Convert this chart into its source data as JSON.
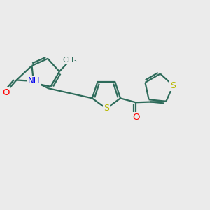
{
  "bg_color": "#ebebeb",
  "bond_color": "#2d6b5a",
  "bond_width": 1.6,
  "atom_colors": {
    "S": "#b8b800",
    "O": "#ff0000",
    "N": "#0000ee",
    "C": "#2d6b5a"
  },
  "font_size": 8.5,
  "fig_width": 3.0,
  "fig_height": 3.0,
  "xlim": [
    0,
    10
  ],
  "ylim": [
    0,
    10
  ]
}
